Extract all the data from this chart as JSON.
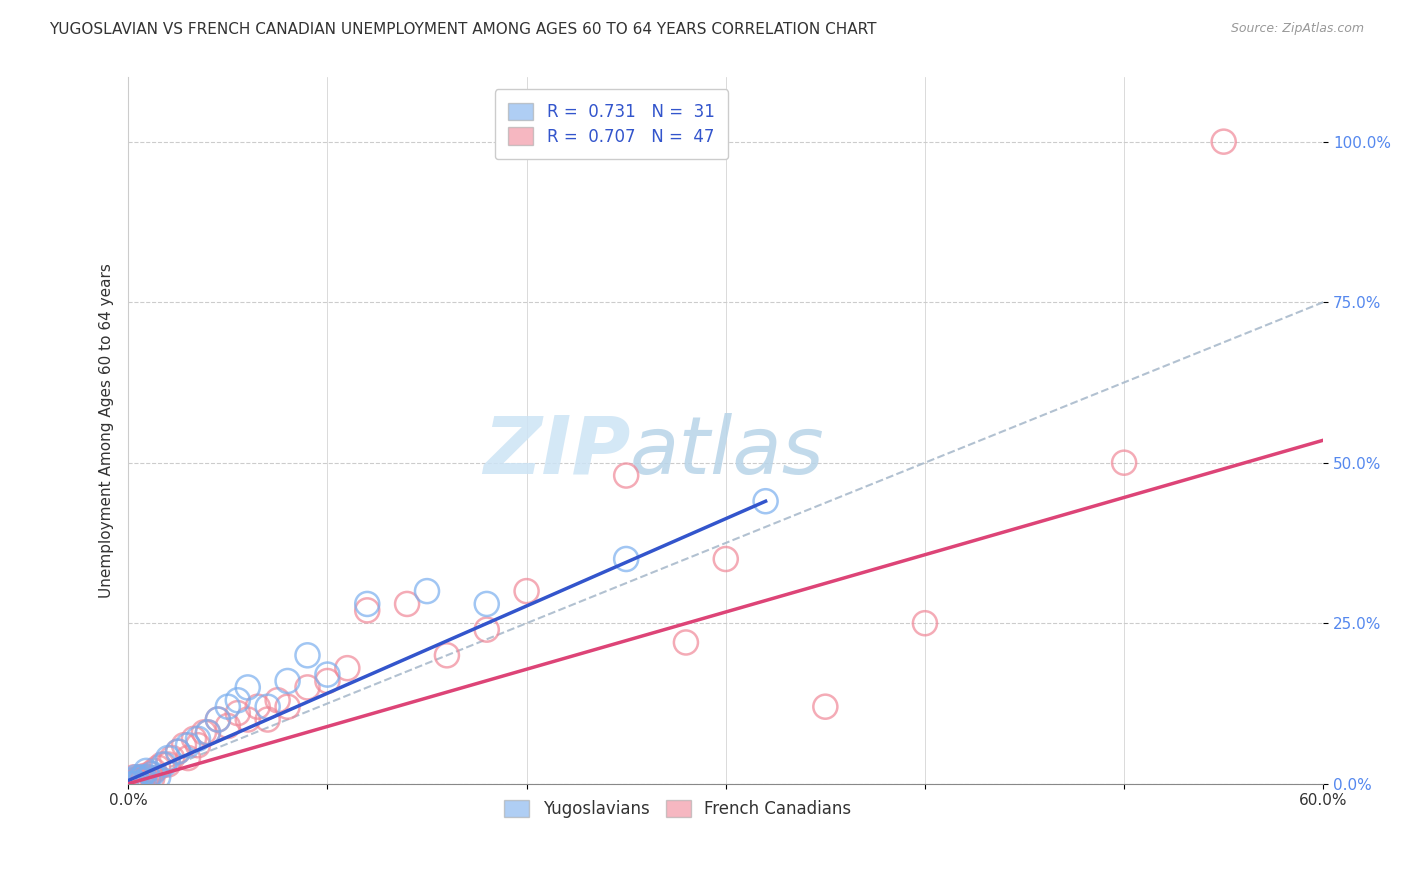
{
  "title": "YUGOSLAVIAN VS FRENCH CANADIAN UNEMPLOYMENT AMONG AGES 60 TO 64 YEARS CORRELATION CHART",
  "source": "Source: ZipAtlas.com",
  "ylabel": "Unemployment Among Ages 60 to 64 years",
  "xlim": [
    0.0,
    0.6
  ],
  "ylim": [
    0.0,
    1.1
  ],
  "yticks": [
    0.0,
    0.25,
    0.5,
    0.75,
    1.0
  ],
  "ytick_labels": [
    "0.0%",
    "25.0%",
    "50.0%",
    "75.0%",
    "100.0%"
  ],
  "xticks": [
    0.0,
    0.1,
    0.2,
    0.3,
    0.4,
    0.5,
    0.6
  ],
  "xtick_labels": [
    "0.0%",
    "",
    "",
    "",
    "",
    "",
    "60.0%"
  ],
  "legend_R1": "R =  0.731",
  "legend_N1": "N =  31",
  "legend_R2": "R =  0.707",
  "legend_N2": "N =  47",
  "series1_color": "#7aaeee",
  "series2_color": "#f08898",
  "line1_color": "#3355cc",
  "line2_color": "#dd4477",
  "dash_color": "#aabbcc",
  "watermark_color": "#cde4f5",
  "background_color": "#ffffff",
  "grid_color": "#cccccc",
  "yugoslavian_x": [
    0.001,
    0.002,
    0.003,
    0.004,
    0.005,
    0.006,
    0.007,
    0.008,
    0.009,
    0.01,
    0.012,
    0.015,
    0.018,
    0.02,
    0.025,
    0.03,
    0.035,
    0.04,
    0.045,
    0.05,
    0.055,
    0.06,
    0.07,
    0.08,
    0.09,
    0.1,
    0.12,
    0.15,
    0.18,
    0.25,
    0.32
  ],
  "yugoslavian_y": [
    0.0,
    0.005,
    0.0,
    0.01,
    0.0,
    0.008,
    0.01,
    0.005,
    0.02,
    0.01,
    0.015,
    0.01,
    0.03,
    0.04,
    0.05,
    0.06,
    0.07,
    0.08,
    0.1,
    0.12,
    0.13,
    0.15,
    0.12,
    0.16,
    0.2,
    0.17,
    0.28,
    0.3,
    0.28,
    0.35,
    0.44
  ],
  "frenchcanadian_x": [
    0.001,
    0.002,
    0.003,
    0.004,
    0.005,
    0.006,
    0.007,
    0.008,
    0.009,
    0.01,
    0.011,
    0.012,
    0.013,
    0.015,
    0.017,
    0.02,
    0.022,
    0.025,
    0.028,
    0.03,
    0.033,
    0.035,
    0.038,
    0.04,
    0.045,
    0.05,
    0.055,
    0.06,
    0.065,
    0.07,
    0.075,
    0.08,
    0.09,
    0.1,
    0.11,
    0.12,
    0.14,
    0.16,
    0.18,
    0.2,
    0.25,
    0.28,
    0.3,
    0.35,
    0.4,
    0.5,
    0.55
  ],
  "frenchcanadian_y": [
    0.0,
    0.005,
    0.01,
    0.005,
    0.008,
    0.01,
    0.005,
    0.012,
    0.008,
    0.01,
    0.015,
    0.008,
    0.02,
    0.025,
    0.03,
    0.03,
    0.04,
    0.05,
    0.06,
    0.04,
    0.07,
    0.06,
    0.08,
    0.08,
    0.1,
    0.09,
    0.11,
    0.1,
    0.12,
    0.1,
    0.13,
    0.12,
    0.15,
    0.16,
    0.18,
    0.27,
    0.28,
    0.2,
    0.24,
    0.3,
    0.48,
    0.22,
    0.35,
    0.12,
    0.25,
    0.5,
    1.0
  ],
  "yug_line_x": [
    0.0,
    0.32
  ],
  "yug_line_y": [
    0.005,
    0.44
  ],
  "fc_line_x": [
    0.0,
    0.6
  ],
  "fc_line_y": [
    0.0,
    0.535
  ],
  "dash_line_x": [
    0.0,
    0.6
  ],
  "dash_line_y": [
    0.0,
    0.75
  ]
}
